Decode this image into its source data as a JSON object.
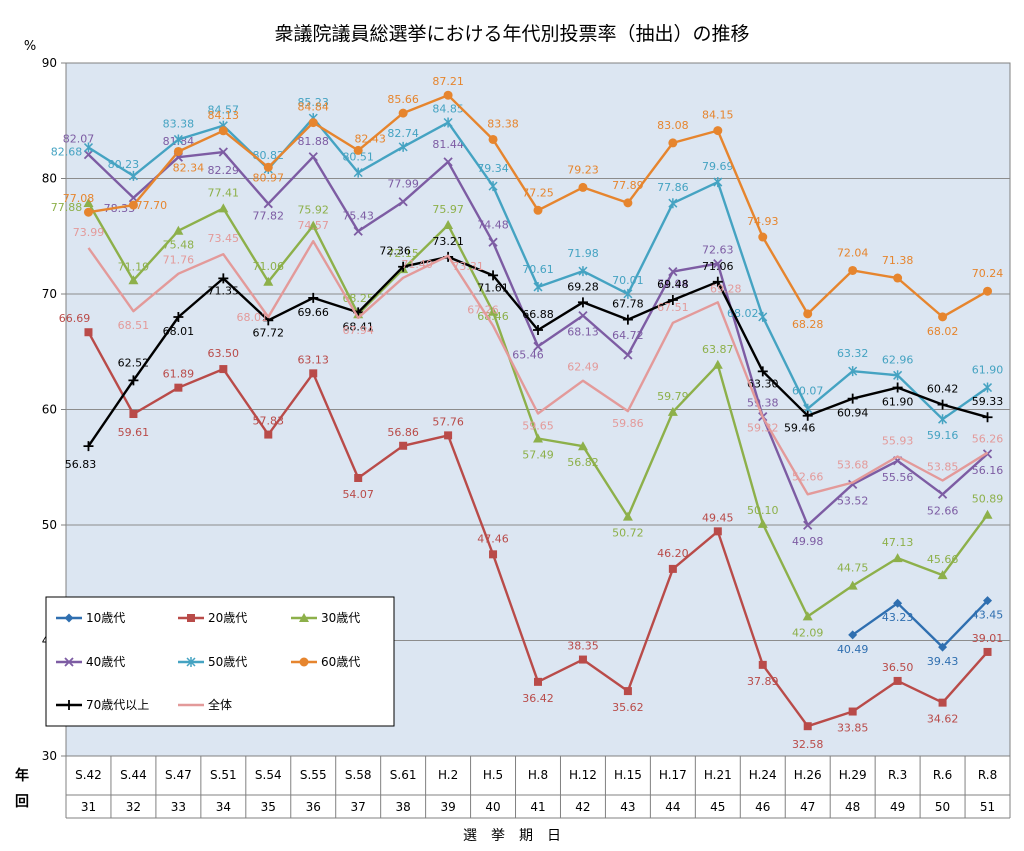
{
  "chart_data": {
    "type": "line",
    "title": "衆議院議員総選挙における年代別投票率（抽出）の推移",
    "ylabel": "%",
    "xlabel": "選　挙　期　日",
    "row_labels": [
      "年",
      "回"
    ],
    "ylim": [
      30,
      90
    ],
    "yticks": [
      30,
      40,
      50,
      60,
      70,
      80,
      90
    ],
    "grid": true,
    "legend_position": "bottom-left-inside",
    "categories": [
      "S.42",
      "S.44",
      "S.47",
      "S.51",
      "S.54",
      "S.55",
      "S.58",
      "S.61",
      "H.2",
      "H.5",
      "H.8",
      "H.12",
      "H.15",
      "H.17",
      "H.21",
      "H.24",
      "H.26",
      "H.29",
      "R.3",
      "R.6",
      "R.8"
    ],
    "sessions": [
      "31",
      "32",
      "33",
      "34",
      "35",
      "36",
      "37",
      "38",
      "39",
      "40",
      "41",
      "42",
      "43",
      "44",
      "45",
      "46",
      "47",
      "48",
      "49",
      "50",
      "51"
    ],
    "series": [
      {
        "name": "10歳代",
        "color": "#2f6fb0",
        "marker": "diamond",
        "values": [
          null,
          null,
          null,
          null,
          null,
          null,
          null,
          null,
          null,
          null,
          null,
          null,
          null,
          null,
          null,
          null,
          null,
          40.49,
          43.23,
          39.43,
          43.45
        ]
      },
      {
        "name": "20歳代",
        "color": "#b94b49",
        "marker": "square",
        "values": [
          66.69,
          59.61,
          61.89,
          63.5,
          57.83,
          63.13,
          54.07,
          56.86,
          57.76,
          47.46,
          36.42,
          38.35,
          35.62,
          46.2,
          49.45,
          37.89,
          32.58,
          33.85,
          36.5,
          34.62,
          39.01
        ]
      },
      {
        "name": "30歳代",
        "color": "#8db04a",
        "marker": "triangle",
        "values": [
          77.88,
          71.19,
          75.48,
          77.41,
          71.06,
          75.92,
          68.25,
          72.15,
          75.97,
          68.46,
          57.49,
          56.82,
          50.72,
          59.79,
          63.87,
          50.1,
          42.09,
          44.75,
          47.13,
          45.66,
          50.89
        ]
      },
      {
        "name": "40歳代",
        "color": "#7d5ca3",
        "marker": "x",
        "values": [
          82.07,
          78.33,
          81.84,
          82.29,
          77.82,
          81.88,
          75.43,
          77.99,
          81.44,
          74.48,
          65.46,
          68.13,
          64.72,
          71.94,
          72.63,
          59.38,
          49.98,
          53.52,
          55.56,
          52.66,
          56.16
        ]
      },
      {
        "name": "50歳代",
        "color": "#45a3c2",
        "marker": "star",
        "values": [
          82.68,
          80.23,
          83.38,
          84.57,
          80.82,
          85.23,
          80.51,
          82.74,
          84.85,
          79.34,
          70.61,
          71.98,
          70.01,
          77.86,
          79.69,
          68.02,
          60.07,
          63.32,
          62.96,
          59.16,
          61.9
        ]
      },
      {
        "name": "60歳代",
        "color": "#e6852e",
        "marker": "circle",
        "values": [
          77.08,
          77.7,
          82.34,
          84.13,
          80.97,
          84.84,
          82.43,
          85.66,
          87.21,
          83.38,
          77.25,
          79.23,
          77.89,
          83.08,
          84.15,
          74.93,
          68.28,
          72.04,
          71.38,
          68.02,
          70.24
        ]
      },
      {
        "name": "70歳代以上",
        "color": "#000000",
        "marker": "plus",
        "values": [
          56.83,
          62.52,
          68.01,
          71.35,
          67.72,
          69.66,
          68.41,
          72.36,
          73.21,
          71.61,
          66.88,
          69.28,
          67.78,
          69.48,
          71.06,
          63.3,
          59.46,
          60.94,
          61.9,
          60.42,
          59.33
        ]
      },
      {
        "name": "全体",
        "color": "#e39a9a",
        "marker": "none",
        "values": [
          73.99,
          68.51,
          71.76,
          73.45,
          68.01,
          74.57,
          67.94,
          71.4,
          73.31,
          67.26,
          59.65,
          62.49,
          59.86,
          67.51,
          69.28,
          59.32,
          52.66,
          53.68,
          55.93,
          53.85,
          56.26
        ]
      }
    ]
  }
}
